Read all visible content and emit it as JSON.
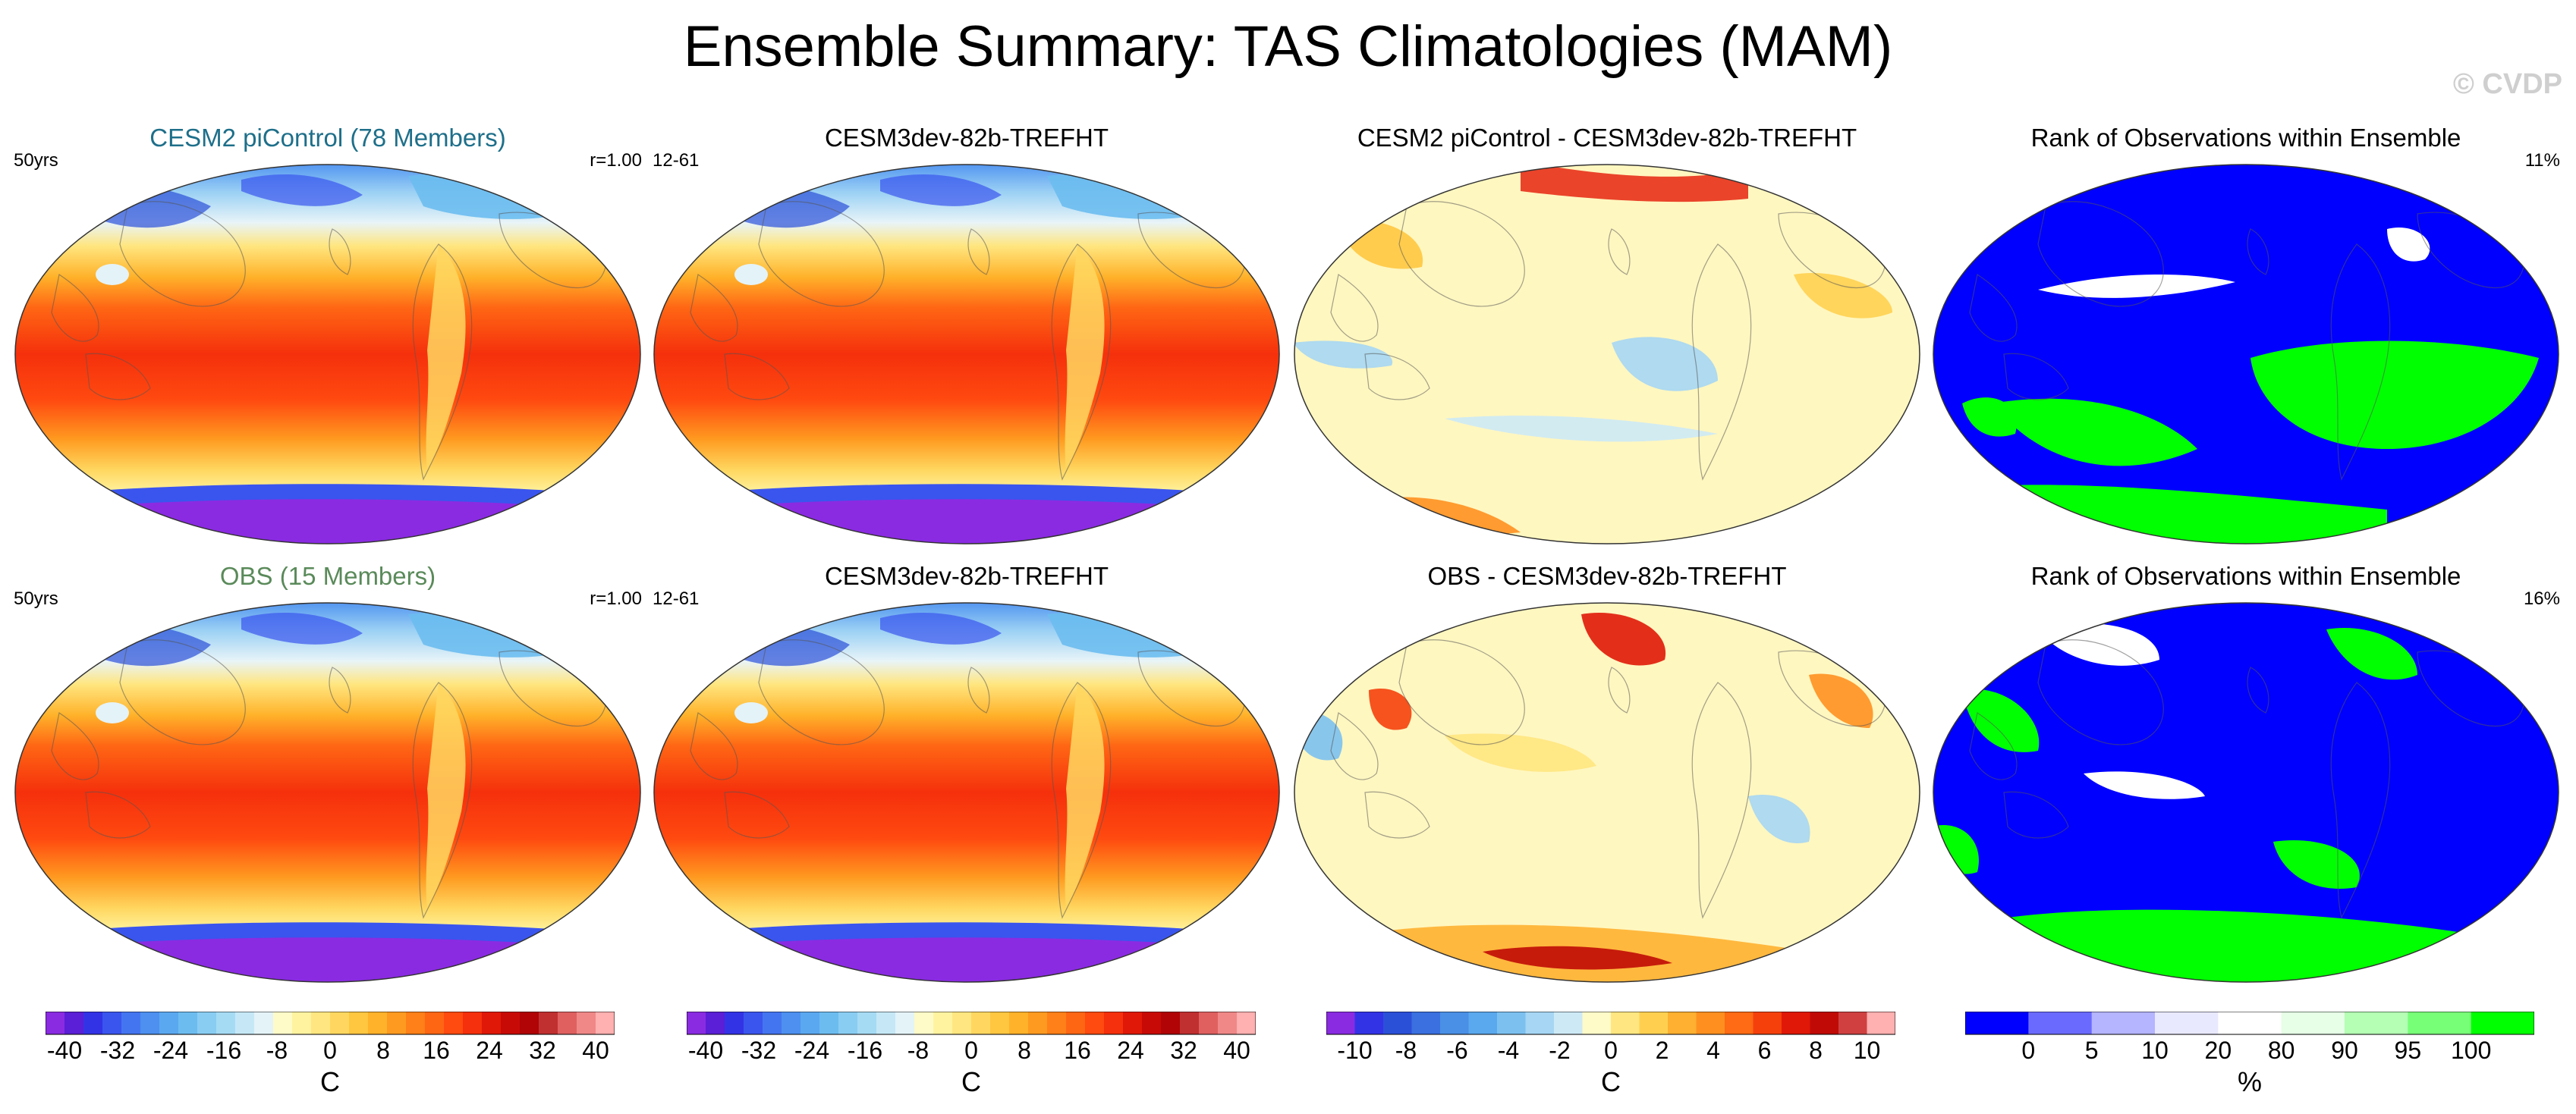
{
  "figure": {
    "title": "Ensemble Summary: TAS Climatologies (MAM)",
    "credit": "© CVDP"
  },
  "panels": [
    {
      "title": "CESM2 piControl (78 Members)",
      "title_color": "#1e6f8a",
      "left_label": "50yrs",
      "right_label": "r=1.00",
      "kind": "clim"
    },
    {
      "title": "CESM3dev-82b-TREFHT",
      "title_color": "#000000",
      "left_label": "12-61",
      "right_label": "",
      "kind": "clim"
    },
    {
      "title": "CESM2 piControl - CESM3dev-82b-TREFHT",
      "title_color": "#000000",
      "left_label": "",
      "right_label": "",
      "kind": "diff1"
    },
    {
      "title": "Rank of Observations within Ensemble",
      "title_color": "#000000",
      "left_label": "",
      "right_label": "11%",
      "kind": "rank1"
    },
    {
      "title": "OBS (15 Members)",
      "title_color": "#5a8a5a",
      "left_label": "50yrs",
      "right_label": "r=1.00",
      "kind": "clim"
    },
    {
      "title": "CESM3dev-82b-TREFHT",
      "title_color": "#000000",
      "left_label": "12-61",
      "right_label": "",
      "kind": "clim"
    },
    {
      "title": "OBS - CESM3dev-82b-TREFHT",
      "title_color": "#000000",
      "left_label": "",
      "right_label": "",
      "kind": "diff2"
    },
    {
      "title": "Rank of Observations within Ensemble",
      "title_color": "#000000",
      "left_label": "",
      "right_label": "16%",
      "kind": "rank2"
    }
  ],
  "colorbars": [
    {
      "unit": "C",
      "colors": [
        "#8a2be2",
        "#5a1fd6",
        "#3333e6",
        "#3a55ee",
        "#4475f0",
        "#4d90f0",
        "#5aa8f0",
        "#6cbcf0",
        "#8acdf2",
        "#a6dbf4",
        "#c6e8f6",
        "#e4f3f8",
        "#fffbc8",
        "#fff3a0",
        "#ffe680",
        "#ffd760",
        "#ffc640",
        "#ffb22a",
        "#ff9a20",
        "#ff8018",
        "#ff6614",
        "#ff4a10",
        "#f5300c",
        "#e01808",
        "#c80a06",
        "#b00406",
        "#c03030",
        "#e06060",
        "#f08888",
        "#ffb0b0"
      ],
      "ticks": [
        "-40",
        "-32",
        "-24",
        "-16",
        "-8",
        "0",
        "8",
        "16",
        "24",
        "32",
        "40"
      ]
    },
    {
      "unit": "C",
      "colors": [
        "#8a2be2",
        "#5a1fd6",
        "#3333e6",
        "#3a55ee",
        "#4475f0",
        "#4d90f0",
        "#5aa8f0",
        "#6cbcf0",
        "#8acdf2",
        "#a6dbf4",
        "#c6e8f6",
        "#e4f3f8",
        "#fffbc8",
        "#fff3a0",
        "#ffe680",
        "#ffd760",
        "#ffc640",
        "#ffb22a",
        "#ff9a20",
        "#ff8018",
        "#ff6614",
        "#ff4a10",
        "#f5300c",
        "#e01808",
        "#c80a06",
        "#b00406",
        "#c03030",
        "#e06060",
        "#f08888",
        "#ffb0b0"
      ],
      "ticks": [
        "-40",
        "-32",
        "-24",
        "-16",
        "-8",
        "0",
        "8",
        "16",
        "24",
        "32",
        "40"
      ]
    },
    {
      "unit": "C",
      "colors": [
        "#8a2be2",
        "#3333e6",
        "#2b50d8",
        "#3a70e0",
        "#4a90e6",
        "#5aa8ee",
        "#7cc0f0",
        "#a6d6f4",
        "#cde9f6",
        "#fffbc8",
        "#ffe680",
        "#ffd050",
        "#ffb030",
        "#ff9020",
        "#ff6a14",
        "#f5400c",
        "#e01808",
        "#c00a06",
        "#d04040",
        "#ffb0b0"
      ],
      "ticks": [
        "-10",
        "-8",
        "-6",
        "-4",
        "-2",
        "0",
        "2",
        "4",
        "6",
        "8",
        "10"
      ]
    },
    {
      "unit": "%",
      "colors": [
        "#0000ff",
        "#6a6aff",
        "#b4b4ff",
        "#e8e8ff",
        "#ffffff",
        "#e6ffe6",
        "#b4ffb4",
        "#78ff78",
        "#00ff00"
      ],
      "ticks": [
        "0",
        "5",
        "10",
        "20",
        "80",
        "90",
        "95",
        "100"
      ]
    }
  ]
}
